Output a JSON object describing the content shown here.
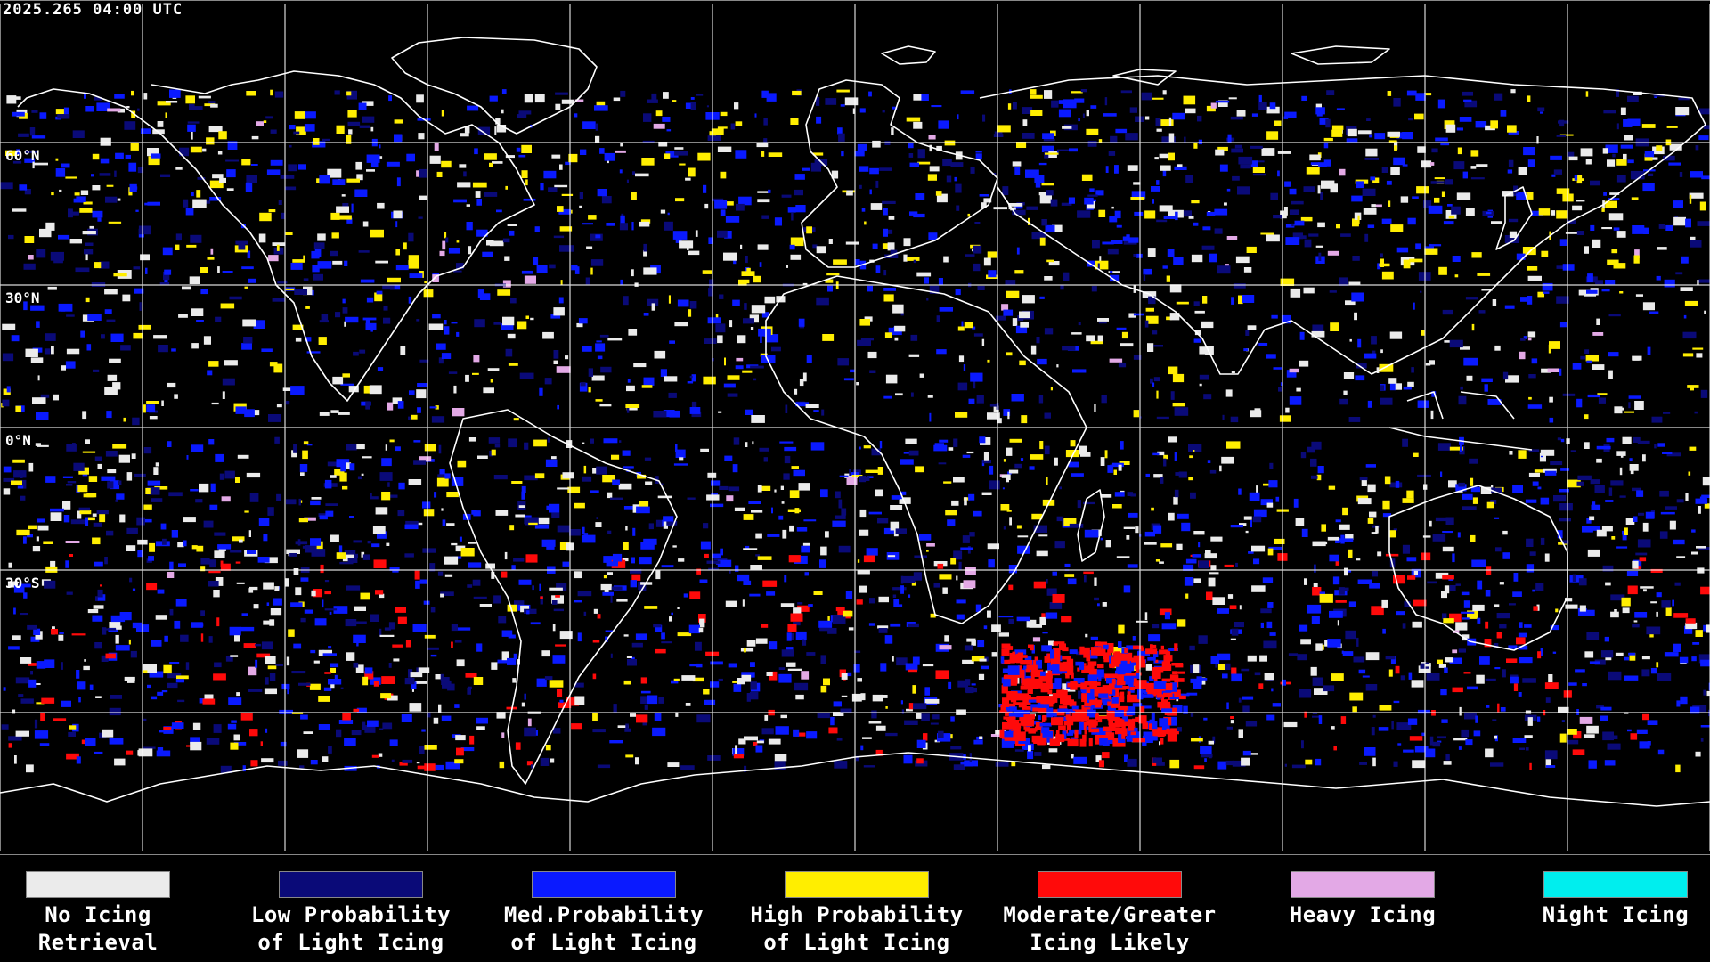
{
  "timestamp": "2025.265 04:00 UTC",
  "lat_labels": [
    "60°N",
    "30°N",
    "0°N",
    "30°S"
  ],
  "legend": [
    {
      "line1": "No Icing",
      "line2": "Retrieval",
      "color": "#ebebeb"
    },
    {
      "line1": "Low Probability",
      "line2": "of Light Icing",
      "color": "#0a0a78"
    },
    {
      "line1": "Med.Probability",
      "line2": "of Light Icing",
      "color": "#0a1aff"
    },
    {
      "line1": "High Probability",
      "line2": "of Light Icing",
      "color": "#ffee00"
    },
    {
      "line1": "Moderate/Greater",
      "line2": "Icing Likely",
      "color": "#ff0a0a"
    },
    {
      "line1": "Heavy Icing",
      "line2": "",
      "color": "#e3a9e6"
    },
    {
      "line1": "Night Icing",
      "line2": "",
      "color": "#00eeee"
    }
  ]
}
